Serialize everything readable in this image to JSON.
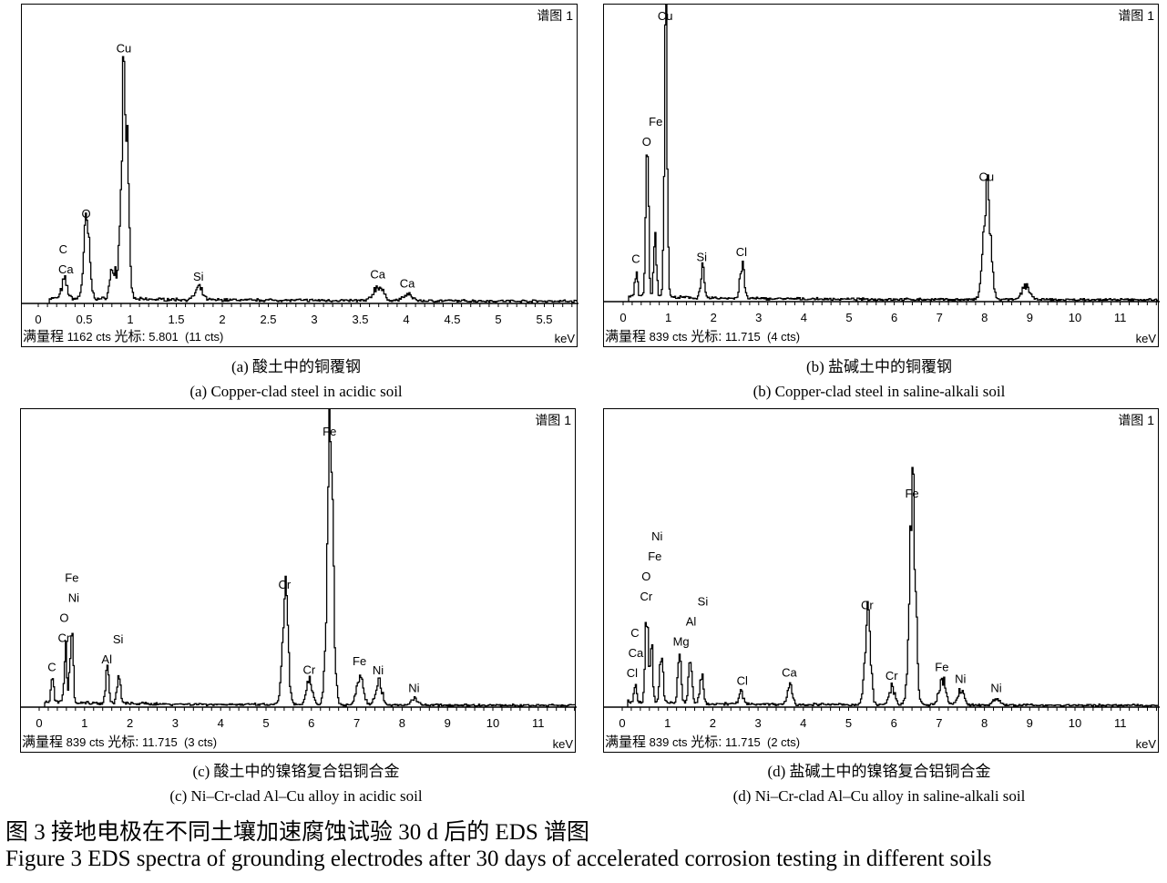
{
  "chart_data": [
    {
      "id": "a",
      "type": "line",
      "spectrum_label": "谱图 1",
      "xlabel": "keV",
      "xlim": [
        0,
        5.85
      ],
      "xticks": [
        "0",
        "0.5",
        "1",
        "1.5",
        "2",
        "2.5",
        "3",
        "3.5",
        "4",
        "4.5",
        "5",
        "5.5"
      ],
      "xtick_values": [
        0,
        0.5,
        1,
        1.5,
        2,
        2.5,
        3,
        3.5,
        4,
        4.5,
        5,
        5.5
      ],
      "minor_tick_step": 0.1,
      "full_scale_label": "满量程",
      "full_scale": "1162 cts",
      "cursor_label": "光标:",
      "cursor": "5.801  (11 cts)",
      "peaks": [
        {
          "energy": 0.28,
          "intensity": 0.06
        },
        {
          "energy": 0.52,
          "intensity": 0.25
        },
        {
          "energy": 0.81,
          "intensity": 0.11
        },
        {
          "energy": 0.93,
          "intensity": 0.81
        },
        {
          "energy": 1.74,
          "intensity": 0.04
        },
        {
          "energy": 3.69,
          "intensity": 0.05
        },
        {
          "energy": 4.01,
          "intensity": 0.02
        }
      ],
      "labels": [
        {
          "text": "Ca",
          "energy": 0.3
        },
        {
          "text": "C",
          "energy": 0.27
        },
        {
          "text": "O",
          "energy": 0.52
        },
        {
          "text": "Cu",
          "energy": 0.93
        },
        {
          "text": "Si",
          "energy": 1.74
        },
        {
          "text": "Ca",
          "energy": 3.69
        },
        {
          "text": "Ca",
          "energy": 4.01
        }
      ],
      "caption_cn": "(a)  酸土中的铜覆钢",
      "caption_en": "(a) Copper-clad steel in acidic soil"
    },
    {
      "id": "b",
      "type": "line",
      "spectrum_label": "谱图 1",
      "xlabel": "keV",
      "xlim": [
        0,
        11.8
      ],
      "xticks": [
        "0",
        "1",
        "2",
        "3",
        "4",
        "5",
        "6",
        "7",
        "8",
        "9",
        "10",
        "11"
      ],
      "xtick_values": [
        0,
        1,
        2,
        3,
        4,
        5,
        6,
        7,
        8,
        9,
        10,
        11
      ],
      "minor_tick_step": 0.2,
      "full_scale_label": "满量程",
      "full_scale": "839 cts",
      "cursor_label": "光标:",
      "cursor": "11.715  (4 cts)",
      "peaks": [
        {
          "energy": 0.28,
          "intensity": 0.09
        },
        {
          "energy": 0.52,
          "intensity": 0.49
        },
        {
          "energy": 0.7,
          "intensity": 0.2
        },
        {
          "energy": 0.93,
          "intensity": 0.92
        },
        {
          "energy": 1.74,
          "intensity": 0.1
        },
        {
          "energy": 2.62,
          "intensity": 0.12
        },
        {
          "energy": 8.04,
          "intensity": 0.38
        },
        {
          "energy": 8.9,
          "intensity": 0.05
        }
      ],
      "labels": [
        {
          "text": "C",
          "energy": 0.28
        },
        {
          "text": "O",
          "energy": 0.52
        },
        {
          "text": "Fe",
          "energy": 0.72
        },
        {
          "text": "Cu",
          "energy": 0.93
        },
        {
          "text": "Si",
          "energy": 1.74
        },
        {
          "text": "Cl",
          "energy": 2.62
        },
        {
          "text": "Cu",
          "energy": 8.04
        }
      ],
      "caption_cn": "(b)  盐碱土中的铜覆钢",
      "caption_en": "(b) Copper-clad steel in saline-alkali soil"
    },
    {
      "id": "c",
      "type": "line",
      "spectrum_label": "谱图 1",
      "xlabel": "keV",
      "xlim": [
        0,
        11.8
      ],
      "xticks": [
        "0",
        "1",
        "2",
        "3",
        "4",
        "5",
        "6",
        "7",
        "8",
        "9",
        "10",
        "11"
      ],
      "xtick_values": [
        0,
        1,
        2,
        3,
        4,
        5,
        6,
        7,
        8,
        9,
        10,
        11
      ],
      "minor_tick_step": 0.2,
      "full_scale_label": "满量程",
      "full_scale": "839 cts",
      "cursor_label": "光标:",
      "cursor": "11.715  (3 cts)",
      "peaks": [
        {
          "energy": 0.28,
          "intensity": 0.08
        },
        {
          "energy": 0.57,
          "intensity": 0.18
        },
        {
          "energy": 0.7,
          "intensity": 0.28
        },
        {
          "energy": 1.49,
          "intensity": 0.11
        },
        {
          "energy": 1.74,
          "intensity": 0.09
        },
        {
          "energy": 5.41,
          "intensity": 0.37
        },
        {
          "energy": 5.95,
          "intensity": 0.08
        },
        {
          "energy": 6.4,
          "intensity": 0.89
        },
        {
          "energy": 7.06,
          "intensity": 0.11
        },
        {
          "energy": 7.47,
          "intensity": 0.08
        },
        {
          "energy": 8.26,
          "intensity": 0.02
        }
      ],
      "labels": [
        {
          "text": "C",
          "energy": 0.28
        },
        {
          "text": "Cr",
          "energy": 0.55
        },
        {
          "text": "O",
          "energy": 0.55
        },
        {
          "text": "Ni",
          "energy": 0.76
        },
        {
          "text": "Fe",
          "energy": 0.72
        },
        {
          "text": "Al",
          "energy": 1.49
        },
        {
          "text": "Si",
          "energy": 1.74
        },
        {
          "text": "Cr",
          "energy": 5.41
        },
        {
          "text": "Cr",
          "energy": 5.95
        },
        {
          "text": "Fe",
          "energy": 6.4
        },
        {
          "text": "Fe",
          "energy": 7.06
        },
        {
          "text": "Ni",
          "energy": 7.47
        },
        {
          "text": "Ni",
          "energy": 8.26
        }
      ],
      "caption_cn": "(c)  酸土中的镍铬复合铝铜合金",
      "caption_en": "(c) Ni–Cr-clad Al–Cu alloy in acidic soil"
    },
    {
      "id": "d",
      "type": "line",
      "spectrum_label": "谱图 1",
      "xlabel": "keV",
      "xlim": [
        0,
        11.8
      ],
      "xticks": [
        "0",
        "1",
        "2",
        "3",
        "4",
        "5",
        "6",
        "7",
        "8",
        "9",
        "10",
        "11"
      ],
      "xtick_values": [
        0,
        1,
        2,
        3,
        4,
        5,
        6,
        7,
        8,
        9,
        10,
        11
      ],
      "minor_tick_step": 0.2,
      "full_scale_label": "满量程",
      "full_scale": "839 cts",
      "cursor_label": "光标:",
      "cursor": "11.715  (2 cts)",
      "peaks": [
        {
          "energy": 0.28,
          "intensity": 0.06
        },
        {
          "energy": 0.53,
          "intensity": 0.32
        },
        {
          "energy": 0.63,
          "intensity": 0.2
        },
        {
          "energy": 0.85,
          "intensity": 0.19
        },
        {
          "energy": 1.25,
          "intensity": 0.17
        },
        {
          "energy": 1.49,
          "intensity": 0.15
        },
        {
          "energy": 1.74,
          "intensity": 0.09
        },
        {
          "energy": 2.62,
          "intensity": 0.04
        },
        {
          "energy": 3.69,
          "intensity": 0.07
        },
        {
          "energy": 5.41,
          "intensity": 0.3
        },
        {
          "energy": 5.95,
          "intensity": 0.06
        },
        {
          "energy": 6.4,
          "intensity": 0.68
        },
        {
          "energy": 7.06,
          "intensity": 0.09
        },
        {
          "energy": 7.47,
          "intensity": 0.05
        },
        {
          "energy": 8.26,
          "intensity": 0.02
        }
      ],
      "labels": [
        {
          "text": "Cl",
          "energy": 0.22
        },
        {
          "text": "Ca",
          "energy": 0.3
        },
        {
          "text": "C",
          "energy": 0.28
        },
        {
          "text": "Cr",
          "energy": 0.53
        },
        {
          "text": "O",
          "energy": 0.53
        },
        {
          "text": "Fe",
          "energy": 0.72
        },
        {
          "text": "Ni",
          "energy": 0.77
        },
        {
          "text": "Mg",
          "energy": 1.3
        },
        {
          "text": "Al",
          "energy": 1.52
        },
        {
          "text": "Si",
          "energy": 1.78
        },
        {
          "text": "Cl",
          "energy": 2.65
        },
        {
          "text": "Ca",
          "energy": 3.69
        },
        {
          "text": "Cr",
          "energy": 5.41
        },
        {
          "text": "Cr",
          "energy": 5.95
        },
        {
          "text": "Fe",
          "energy": 6.4
        },
        {
          "text": "Fe",
          "energy": 7.06
        },
        {
          "text": "Ni",
          "energy": 7.47
        },
        {
          "text": "Ni",
          "energy": 8.26
        }
      ],
      "caption_cn": "(d)  盐碱土中的镍铬复合铝铜合金",
      "caption_en": "(d) Ni–Cr-clad Al–Cu alloy in saline-alkali soil"
    }
  ],
  "figure": {
    "caption_cn": "图 3    接地电极在不同土壤加速腐蚀试验 30 d 后的 EDS 谱图",
    "caption_en": "Figure 3    EDS spectra of grounding electrodes after 30 days of accelerated corrosion testing in different soils"
  },
  "colors": {
    "line": "#000000",
    "background": "#ffffff"
  }
}
